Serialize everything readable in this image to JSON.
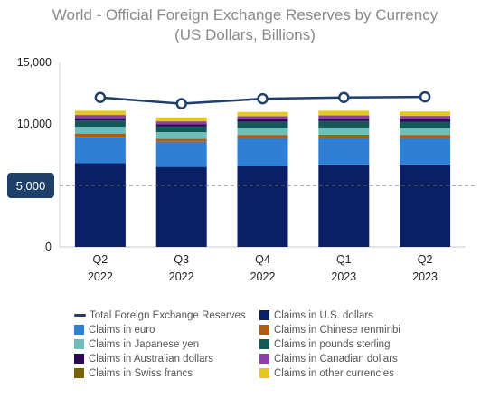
{
  "chart_data": {
    "type": "bar",
    "subtype": "stacked-bar-with-line",
    "title": "World - Official Foreign Exchange Reserves by Currency",
    "subtitle": "(US Dollars, Billions)",
    "xlabel": "",
    "ylabel": "",
    "ylim": [
      0,
      15000
    ],
    "yticks": [
      0,
      5000,
      10000,
      15000
    ],
    "ytick_labels": [
      "0",
      "5,000",
      "10,000",
      "15,000"
    ],
    "highlight_value": 5000,
    "highlight_label": "5,000",
    "categories": [
      "Q2 2022",
      "Q3 2022",
      "Q4 2022",
      "Q1 2023",
      "Q2 2023"
    ],
    "category_lines": [
      [
        "Q2",
        "2022"
      ],
      [
        "Q3",
        "2022"
      ],
      [
        "Q4",
        "2022"
      ],
      [
        "Q1",
        "2023"
      ],
      [
        "Q2",
        "2023"
      ]
    ],
    "grid": false,
    "legend_position": "bottom",
    "series": [
      {
        "name": "Claims in U.S. dollars",
        "color": "#0b1f66",
        "values": [
          6800,
          6500,
          6550,
          6700,
          6700
        ]
      },
      {
        "name": "Claims in euro",
        "color": "#2f7fd6",
        "values": [
          2150,
          2050,
          2300,
          2150,
          2150
        ]
      },
      {
        "name": "Claims in Chinese renminbi",
        "color": "#b35a10",
        "values": [
          270,
          250,
          260,
          270,
          260
        ]
      },
      {
        "name": "Claims in Japanese yen",
        "color": "#6fbfb8",
        "values": [
          550,
          530,
          560,
          590,
          550
        ]
      },
      {
        "name": "Claims in pounds sterling",
        "color": "#14595a",
        "values": [
          500,
          460,
          500,
          520,
          520
        ]
      },
      {
        "name": "Claims in Australian dollars",
        "color": "#2c0a4f",
        "values": [
          200,
          180,
          200,
          200,
          200
        ]
      },
      {
        "name": "Claims in Canadian dollars",
        "color": "#8e3fae",
        "values": [
          250,
          230,
          250,
          260,
          260
        ]
      },
      {
        "name": "Claims in Swiss francs",
        "color": "#7a6200",
        "values": [
          25,
          25,
          25,
          25,
          25
        ]
      },
      {
        "name": "Claims in other currencies",
        "color": "#e6c71c",
        "values": [
          330,
          310,
          330,
          360,
          350
        ]
      }
    ],
    "line_series": {
      "name": "Total Foreign Exchange Reserves",
      "color": "#1f3f6b",
      "values": [
        12150,
        11650,
        12050,
        12150,
        12200
      ]
    },
    "legend_order": [
      "Total Foreign Exchange Reserves",
      "Claims in U.S. dollars",
      "Claims in euro",
      "Claims in Chinese renminbi",
      "Claims in Japanese yen",
      "Claims in pounds sterling",
      "Claims in Australian dollars",
      "Claims in Canadian dollars",
      "Claims in Swiss francs",
      "Claims in other currencies"
    ]
  }
}
